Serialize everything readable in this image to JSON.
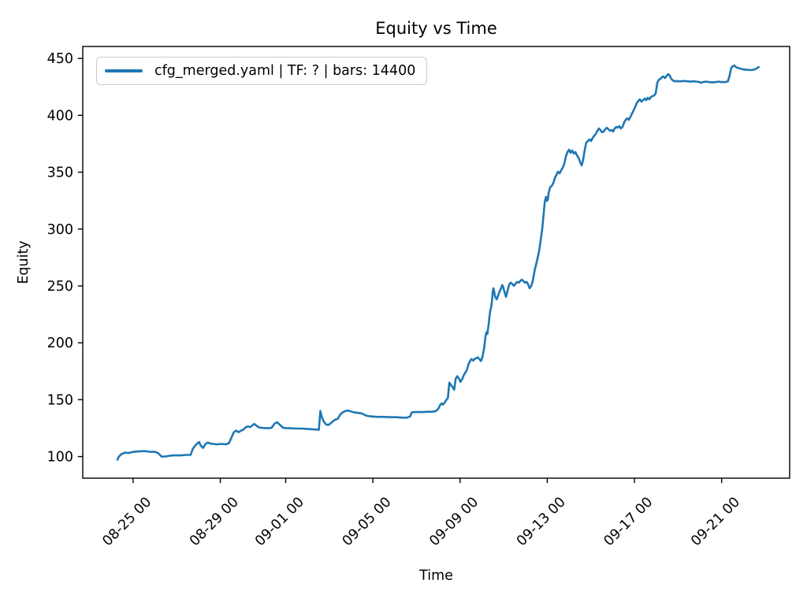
{
  "figure": {
    "title": "Equity vs Time",
    "xlabel": "Time",
    "ylabel": "Equity",
    "legend_label": "cfg_merged.yaml | TF: ? | bars: 14400",
    "line_color": "#1f77b4",
    "axis_color": "#000000",
    "legend_border_color": "#cccccc"
  },
  "chart_data": {
    "type": "line",
    "title": "Equity vs Time",
    "xlabel": "Time",
    "ylabel": "Equity",
    "grid": false,
    "legend_position": "upper left",
    "legend": [
      "cfg_merged.yaml | TF: ? | bars: 14400"
    ],
    "x_unit": "days since 08-25 00:00",
    "xlim": [
      -2.31,
      30.12
    ],
    "ylim": [
      81.0,
      460.5
    ],
    "yticks": [
      100,
      150,
      200,
      250,
      300,
      350,
      400,
      450
    ],
    "xticks": [
      {
        "label": "08-25 00",
        "d": 0
      },
      {
        "label": "08-29 00",
        "d": 4
      },
      {
        "label": "09-01 00",
        "d": 7
      },
      {
        "label": "09-05 00",
        "d": 11
      },
      {
        "label": "09-09 00",
        "d": 15
      },
      {
        "label": "09-13 00",
        "d": 19
      },
      {
        "label": "09-17 00",
        "d": 23
      },
      {
        "label": "09-21 00",
        "d": 27
      }
    ],
    "series": [
      {
        "name": "cfg_merged.yaml | TF: ? | bars: 14400",
        "color": "#1f77b4",
        "points": [
          [
            -0.72,
            97.2
          ],
          [
            -0.65,
            100.0
          ],
          [
            -0.54,
            102.1
          ],
          [
            -0.36,
            103.5
          ],
          [
            -0.22,
            103.1
          ],
          [
            0.0,
            104.1
          ],
          [
            0.25,
            104.5
          ],
          [
            0.54,
            104.8
          ],
          [
            0.79,
            104.1
          ],
          [
            1.01,
            104.1
          ],
          [
            1.16,
            102.8
          ],
          [
            1.3,
            100.0
          ],
          [
            1.44,
            100.0
          ],
          [
            1.66,
            100.7
          ],
          [
            1.88,
            101.0
          ],
          [
            2.17,
            101.0
          ],
          [
            2.45,
            101.4
          ],
          [
            2.64,
            101.4
          ],
          [
            2.74,
            106.9
          ],
          [
            2.85,
            109.7
          ],
          [
            2.96,
            111.8
          ],
          [
            3.03,
            112.8
          ],
          [
            3.1,
            109.7
          ],
          [
            3.21,
            107.6
          ],
          [
            3.32,
            111.1
          ],
          [
            3.43,
            112.4
          ],
          [
            3.54,
            111.4
          ],
          [
            3.68,
            111.1
          ],
          [
            3.83,
            110.7
          ],
          [
            4.04,
            111.1
          ],
          [
            4.26,
            110.7
          ],
          [
            4.4,
            111.8
          ],
          [
            4.51,
            116.6
          ],
          [
            4.62,
            121.4
          ],
          [
            4.73,
            122.8
          ],
          [
            4.84,
            121.4
          ],
          [
            4.95,
            122.8
          ],
          [
            5.05,
            123.5
          ],
          [
            5.16,
            125.6
          ],
          [
            5.27,
            126.6
          ],
          [
            5.38,
            125.9
          ],
          [
            5.49,
            127.7
          ],
          [
            5.56,
            128.7
          ],
          [
            5.67,
            127.0
          ],
          [
            5.78,
            125.6
          ],
          [
            5.92,
            125.2
          ],
          [
            6.14,
            124.9
          ],
          [
            6.35,
            125.2
          ],
          [
            6.5,
            129.1
          ],
          [
            6.61,
            130.1
          ],
          [
            6.71,
            128.4
          ],
          [
            6.86,
            125.6
          ],
          [
            7.0,
            124.9
          ],
          [
            7.22,
            124.9
          ],
          [
            7.47,
            124.6
          ],
          [
            7.73,
            124.6
          ],
          [
            8.01,
            124.2
          ],
          [
            8.3,
            123.9
          ],
          [
            8.52,
            123.5
          ],
          [
            8.59,
            140.1
          ],
          [
            8.66,
            134.6
          ],
          [
            8.74,
            131.1
          ],
          [
            8.84,
            128.4
          ],
          [
            8.95,
            127.7
          ],
          [
            9.06,
            129.1
          ],
          [
            9.17,
            131.1
          ],
          [
            9.28,
            132.5
          ],
          [
            9.39,
            133.2
          ],
          [
            9.49,
            136.7
          ],
          [
            9.6,
            138.7
          ],
          [
            9.71,
            139.8
          ],
          [
            9.82,
            140.5
          ],
          [
            9.93,
            140.1
          ],
          [
            10.04,
            139.4
          ],
          [
            10.18,
            138.7
          ],
          [
            10.32,
            138.4
          ],
          [
            10.47,
            138.0
          ],
          [
            10.58,
            137.0
          ],
          [
            10.69,
            136.0
          ],
          [
            10.9,
            135.3
          ],
          [
            11.19,
            134.9
          ],
          [
            11.48,
            134.9
          ],
          [
            11.77,
            134.6
          ],
          [
            12.06,
            134.6
          ],
          [
            12.35,
            134.2
          ],
          [
            12.56,
            134.2
          ],
          [
            12.71,
            135.3
          ],
          [
            12.78,
            138.7
          ],
          [
            12.89,
            139.1
          ],
          [
            13.07,
            139.1
          ],
          [
            13.29,
            139.1
          ],
          [
            13.5,
            139.4
          ],
          [
            13.72,
            139.4
          ],
          [
            13.9,
            140.1
          ],
          [
            14.01,
            142.2
          ],
          [
            14.08,
            145.0
          ],
          [
            14.15,
            146.7
          ],
          [
            14.22,
            145.7
          ],
          [
            14.3,
            147.7
          ],
          [
            14.37,
            149.8
          ],
          [
            14.44,
            151.5
          ],
          [
            14.51,
            165.0
          ],
          [
            14.58,
            162.9
          ],
          [
            14.66,
            160.9
          ],
          [
            14.73,
            158.8
          ],
          [
            14.8,
            168.5
          ],
          [
            14.87,
            170.6
          ],
          [
            14.95,
            168.5
          ],
          [
            15.02,
            165.7
          ],
          [
            15.09,
            167.8
          ],
          [
            15.16,
            171.2
          ],
          [
            15.23,
            173.3
          ],
          [
            15.31,
            176.1
          ],
          [
            15.38,
            180.9
          ],
          [
            15.45,
            183.7
          ],
          [
            15.52,
            185.8
          ],
          [
            15.6,
            184.4
          ],
          [
            15.67,
            185.8
          ],
          [
            15.74,
            186.5
          ],
          [
            15.81,
            187.2
          ],
          [
            15.88,
            185.8
          ],
          [
            15.96,
            184.0
          ],
          [
            16.03,
            187.8
          ],
          [
            16.1,
            194.8
          ],
          [
            16.14,
            201.0
          ],
          [
            16.17,
            205.8
          ],
          [
            16.21,
            209.3
          ],
          [
            16.25,
            207.9
          ],
          [
            16.28,
            212.1
          ],
          [
            16.32,
            217.6
          ],
          [
            16.35,
            223.1
          ],
          [
            16.39,
            228.7
          ],
          [
            16.43,
            231.4
          ],
          [
            16.46,
            236.3
          ],
          [
            16.5,
            245.3
          ],
          [
            16.53,
            248.0
          ],
          [
            16.57,
            244.6
          ],
          [
            16.61,
            240.4
          ],
          [
            16.68,
            238.3
          ],
          [
            16.75,
            241.8
          ],
          [
            16.82,
            245.3
          ],
          [
            16.9,
            248.7
          ],
          [
            16.93,
            250.8
          ],
          [
            16.97,
            249.4
          ],
          [
            17.04,
            244.6
          ],
          [
            17.11,
            240.4
          ],
          [
            17.18,
            246.0
          ],
          [
            17.26,
            251.5
          ],
          [
            17.33,
            252.9
          ],
          [
            17.4,
            251.5
          ],
          [
            17.47,
            250.1
          ],
          [
            17.55,
            252.2
          ],
          [
            17.62,
            253.6
          ],
          [
            17.69,
            252.9
          ],
          [
            17.76,
            254.2
          ],
          [
            17.83,
            255.6
          ],
          [
            17.91,
            254.2
          ],
          [
            17.98,
            252.9
          ],
          [
            18.05,
            253.6
          ],
          [
            18.12,
            251.5
          ],
          [
            18.19,
            248.0
          ],
          [
            18.27,
            250.1
          ],
          [
            18.34,
            254.9
          ],
          [
            18.41,
            262.5
          ],
          [
            18.48,
            268.1
          ],
          [
            18.56,
            275.0
          ],
          [
            18.63,
            281.2
          ],
          [
            18.7,
            290.2
          ],
          [
            18.77,
            300.6
          ],
          [
            18.84,
            314.4
          ],
          [
            18.88,
            322.7
          ],
          [
            18.92,
            326.9
          ],
          [
            18.95,
            328.3
          ],
          [
            18.99,
            324.8
          ],
          [
            19.03,
            326.2
          ],
          [
            19.06,
            331.7
          ],
          [
            19.13,
            336.6
          ],
          [
            19.21,
            338.0
          ],
          [
            19.28,
            340.7
          ],
          [
            19.35,
            344.9
          ],
          [
            19.42,
            347.6
          ],
          [
            19.49,
            350.4
          ],
          [
            19.57,
            349.0
          ],
          [
            19.64,
            351.8
          ],
          [
            19.71,
            353.9
          ],
          [
            19.78,
            357.3
          ],
          [
            19.86,
            364.2
          ],
          [
            19.93,
            367.7
          ],
          [
            20.0,
            369.8
          ],
          [
            20.07,
            367.0
          ],
          [
            20.14,
            369.1
          ],
          [
            20.22,
            366.3
          ],
          [
            20.29,
            367.7
          ],
          [
            20.36,
            364.9
          ],
          [
            20.43,
            362.8
          ],
          [
            20.51,
            358.7
          ],
          [
            20.58,
            355.9
          ],
          [
            20.65,
            361.4
          ],
          [
            20.72,
            369.8
          ],
          [
            20.79,
            376.0
          ],
          [
            20.87,
            377.4
          ],
          [
            20.94,
            378.8
          ],
          [
            21.01,
            377.4
          ],
          [
            21.08,
            380.2
          ],
          [
            21.16,
            382.2
          ],
          [
            21.23,
            383.6
          ],
          [
            21.3,
            386.4
          ],
          [
            21.37,
            388.4
          ],
          [
            21.44,
            387.1
          ],
          [
            21.52,
            385.0
          ],
          [
            21.59,
            385.7
          ],
          [
            21.66,
            387.7
          ],
          [
            21.73,
            389.1
          ],
          [
            21.81,
            387.7
          ],
          [
            21.88,
            386.4
          ],
          [
            21.95,
            387.1
          ],
          [
            22.02,
            385.7
          ],
          [
            22.09,
            388.4
          ],
          [
            22.17,
            389.8
          ],
          [
            22.24,
            389.1
          ],
          [
            22.31,
            390.5
          ],
          [
            22.38,
            388.4
          ],
          [
            22.45,
            389.8
          ],
          [
            22.53,
            394.0
          ],
          [
            22.6,
            396.0
          ],
          [
            22.67,
            397.4
          ],
          [
            22.74,
            396.0
          ],
          [
            22.82,
            398.8
          ],
          [
            22.89,
            401.6
          ],
          [
            22.96,
            404.4
          ],
          [
            23.03,
            407.1
          ],
          [
            23.1,
            410.6
          ],
          [
            23.18,
            412.6
          ],
          [
            23.25,
            414.0
          ],
          [
            23.32,
            412.0
          ],
          [
            23.39,
            413.3
          ],
          [
            23.47,
            414.7
          ],
          [
            23.54,
            413.3
          ],
          [
            23.61,
            415.4
          ],
          [
            23.68,
            414.0
          ],
          [
            23.75,
            416.1
          ],
          [
            23.83,
            416.8
          ],
          [
            23.9,
            417.5
          ],
          [
            23.97,
            418.9
          ],
          [
            24.01,
            423.7
          ],
          [
            24.04,
            427.8
          ],
          [
            24.08,
            429.9
          ],
          [
            24.12,
            431.3
          ],
          [
            24.19,
            432.0
          ],
          [
            24.26,
            433.4
          ],
          [
            24.33,
            434.1
          ],
          [
            24.4,
            432.7
          ],
          [
            24.48,
            434.8
          ],
          [
            24.55,
            436.2
          ],
          [
            24.62,
            434.8
          ],
          [
            24.69,
            432.0
          ],
          [
            24.77,
            430.6
          ],
          [
            24.84,
            429.9
          ],
          [
            24.91,
            430.2
          ],
          [
            24.98,
            429.9
          ],
          [
            25.13,
            429.9
          ],
          [
            25.27,
            430.2
          ],
          [
            25.42,
            429.9
          ],
          [
            25.56,
            429.6
          ],
          [
            25.7,
            429.9
          ],
          [
            25.85,
            429.6
          ],
          [
            25.99,
            429.2
          ],
          [
            26.06,
            428.5
          ],
          [
            26.14,
            429.2
          ],
          [
            26.28,
            429.6
          ],
          [
            26.43,
            429.2
          ],
          [
            26.57,
            428.9
          ],
          [
            26.71,
            429.2
          ],
          [
            26.86,
            429.6
          ],
          [
            27.0,
            429.2
          ],
          [
            27.15,
            429.2
          ],
          [
            27.29,
            429.9
          ],
          [
            27.36,
            434.8
          ],
          [
            27.44,
            441.7
          ],
          [
            27.51,
            443.1
          ],
          [
            27.58,
            443.8
          ],
          [
            27.65,
            442.4
          ],
          [
            27.73,
            441.7
          ],
          [
            27.8,
            441.4
          ],
          [
            27.87,
            441.0
          ],
          [
            28.01,
            440.3
          ],
          [
            28.16,
            440.0
          ],
          [
            28.3,
            439.7
          ],
          [
            28.45,
            440.0
          ],
          [
            28.59,
            441.0
          ],
          [
            28.7,
            442.4
          ]
        ]
      }
    ]
  }
}
